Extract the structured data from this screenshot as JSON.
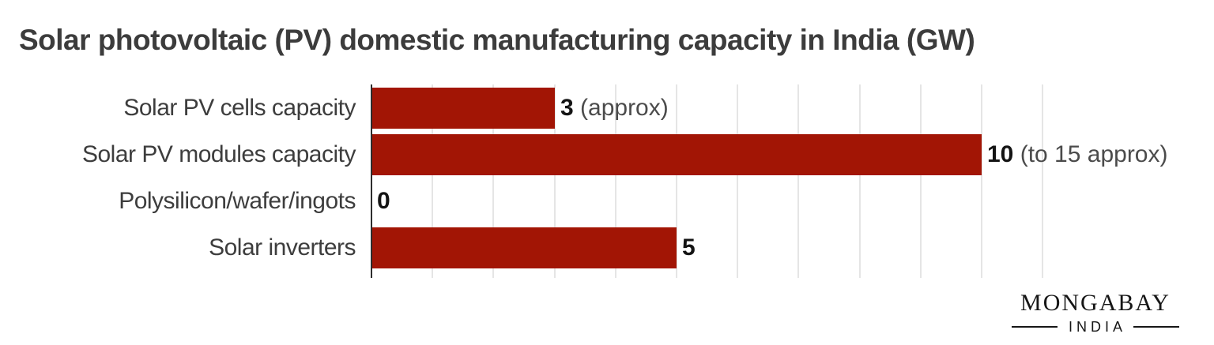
{
  "chart_data": {
    "type": "bar",
    "orientation": "horizontal",
    "title": "Solar photovoltaic (PV) domestic manufacturing capacity in India (GW)",
    "categories": [
      "Solar PV cells capacity",
      "Solar PV modules capacity",
      "Polysilicon/wafer/ingots",
      "Solar inverters"
    ],
    "values": [
      3,
      10,
      0,
      5
    ],
    "value_labels": [
      {
        "number": "3",
        "annotation": " (approx)"
      },
      {
        "number": "10",
        "annotation": " (to 15 approx)"
      },
      {
        "number": "0",
        "annotation": ""
      },
      {
        "number": "5",
        "annotation": ""
      }
    ],
    "xlabel": "",
    "ylabel": "",
    "xlim": [
      0,
      11
    ],
    "gridline_step": 1,
    "grid": true,
    "legend": "none",
    "colors": {
      "bar": "#a21505",
      "title_text": "#3c3c3c",
      "category_text": "#3d3d3d",
      "value_number_text": "#141414",
      "value_annotation_text": "#4b4b4b",
      "gridline": "#e5e5e5",
      "axis_line": "#2d2d2d",
      "background": "#ffffff"
    }
  },
  "logo": {
    "brand": "MONGABAY",
    "sub": "INDIA",
    "color": "#161616"
  }
}
